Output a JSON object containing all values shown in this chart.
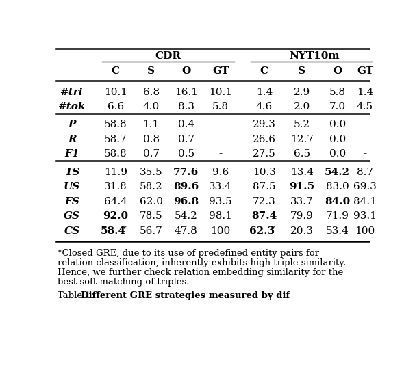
{
  "col_headers": [
    "",
    "C",
    "S",
    "O",
    "GT",
    "C",
    "S",
    "O",
    "GT"
  ],
  "rows": [
    {
      "label": "#tri",
      "values": [
        "10.1",
        "6.8",
        "16.1",
        "10.1",
        "1.4",
        "2.9",
        "5.8",
        "1.4"
      ],
      "bold_mask": [
        false,
        false,
        false,
        false,
        false,
        false,
        false,
        false
      ],
      "section_break_after": false
    },
    {
      "label": "#tok",
      "values": [
        "6.6",
        "4.0",
        "8.3",
        "5.8",
        "4.6",
        "2.0",
        "7.0",
        "4.5"
      ],
      "bold_mask": [
        false,
        false,
        false,
        false,
        false,
        false,
        false,
        false
      ],
      "section_break_after": true
    },
    {
      "label": "P",
      "values": [
        "58.8",
        "1.1",
        "0.4",
        "-",
        "29.3",
        "5.2",
        "0.0",
        "-"
      ],
      "bold_mask": [
        false,
        false,
        false,
        false,
        false,
        false,
        false,
        false
      ],
      "section_break_after": false
    },
    {
      "label": "R",
      "values": [
        "58.7",
        "0.8",
        "0.7",
        "-",
        "26.6",
        "12.7",
        "0.0",
        "-"
      ],
      "bold_mask": [
        false,
        false,
        false,
        false,
        false,
        false,
        false,
        false
      ],
      "section_break_after": false
    },
    {
      "label": "F1",
      "values": [
        "58.8",
        "0.7",
        "0.5",
        "-",
        "27.5",
        "6.5",
        "0.0",
        "-"
      ],
      "bold_mask": [
        false,
        false,
        false,
        false,
        false,
        false,
        false,
        false
      ],
      "section_break_after": true
    },
    {
      "label": "TS",
      "values": [
        "11.9",
        "35.5",
        "77.6",
        "9.6",
        "10.3",
        "13.4",
        "54.2",
        "8.7"
      ],
      "bold_mask": [
        false,
        false,
        true,
        false,
        false,
        false,
        true,
        false
      ],
      "section_break_after": false
    },
    {
      "label": "US",
      "values": [
        "31.8",
        "58.2",
        "89.6",
        "33.4",
        "87.5",
        "91.5",
        "83.0",
        "69.3"
      ],
      "bold_mask": [
        false,
        false,
        true,
        false,
        false,
        true,
        false,
        false
      ],
      "section_break_after": false
    },
    {
      "label": "FS",
      "values": [
        "64.4",
        "62.0",
        "96.8",
        "93.5",
        "72.3",
        "33.7",
        "84.0",
        "84.1"
      ],
      "bold_mask": [
        false,
        false,
        true,
        false,
        false,
        false,
        true,
        false
      ],
      "section_break_after": false
    },
    {
      "label": "GS",
      "values": [
        "92.0",
        "78.5",
        "54.2",
        "98.1",
        "87.4",
        "79.9",
        "71.9",
        "93.1"
      ],
      "bold_mask": [
        true,
        false,
        false,
        false,
        true,
        false,
        false,
        false
      ],
      "section_break_after": false
    },
    {
      "label": "CS",
      "values": [
        "58.4*",
        "56.7",
        "47.8",
        "100",
        "62.3*",
        "20.3",
        "53.4",
        "100"
      ],
      "bold_mask": [
        true,
        false,
        false,
        false,
        true,
        false,
        false,
        false
      ],
      "section_break_after": false
    }
  ],
  "footnote_lines": [
    "*Closed GRE, due to its use of predefined entity pairs for",
    "relation classification, inherently exhibits high triple similarity.",
    "Hence, we further check relation embedding similarity for the",
    "best soft matching of triples."
  ],
  "caption_normal": "Table 1: ",
  "caption_bold": "Different GRE strategies measured by dif",
  "bg_color": "#ffffff"
}
